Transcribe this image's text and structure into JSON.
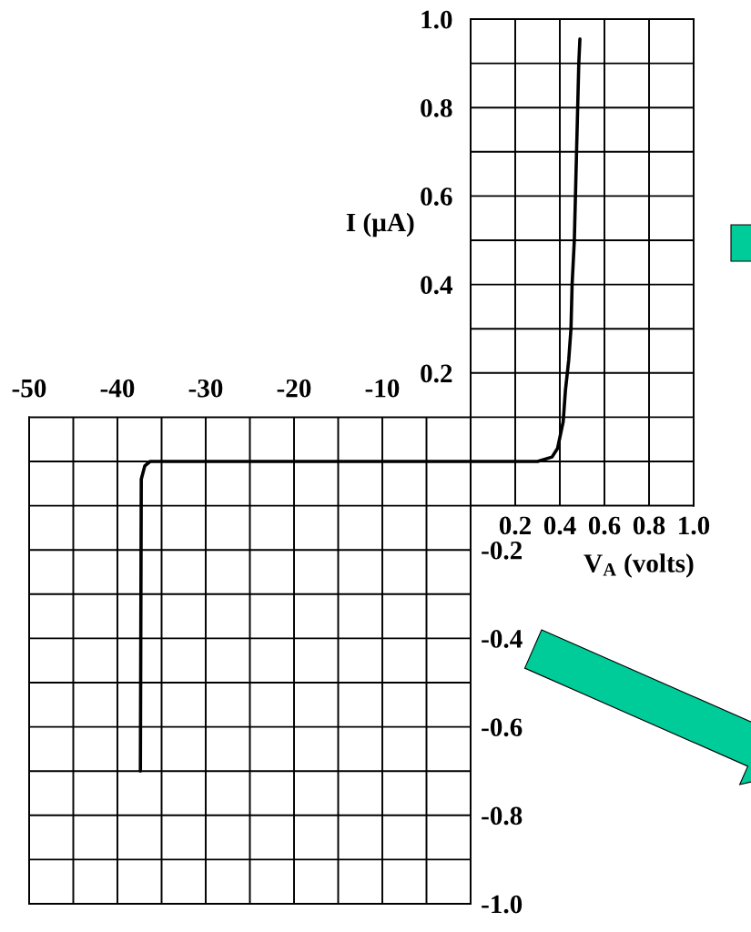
{
  "chart_data": [
    {
      "type": "line",
      "xlabel": "V$_{A}$ (volts)",
      "ylabel": "I (µA)",
      "grid": true,
      "series": [
        {
          "color": "#000000",
          "x": [
            0,
            0.3,
            0.365,
            0.39,
            0.415,
            0.425,
            0.44,
            0.45,
            0.455,
            0.465,
            0.47,
            0.475,
            0.48,
            0.485,
            0.49
          ],
          "values": [
            0,
            0,
            0.01,
            0.03,
            0.09,
            0.16,
            0.23,
            0.3,
            0.4,
            0.5,
            0.6,
            0.7,
            0.8,
            0.9,
            0.955
          ]
        }
      ],
      "xlim": [
        0,
        1
      ],
      "ylim": [
        -1,
        1
      ],
      "xticks": [
        {
          "value": 0,
          "label": null
        },
        0.2,
        0.4,
        0.6,
        0.8,
        {
          "value": 1,
          "label": "1.0"
        }
      ],
      "yticks": [
        {
          "value": -0.1,
          "label": null
        },
        {
          "value": 0,
          "label": null
        },
        {
          "value": 0.1,
          "label": null
        },
        0.2,
        {
          "value": 0.3,
          "label": null
        },
        0.4,
        {
          "value": 0.5,
          "label": null
        },
        0.6,
        {
          "value": 0.7,
          "label": null
        },
        0.8,
        {
          "value": 0.9,
          "label": null
        },
        {
          "value": 1,
          "label": "1.0"
        }
      ]
    },
    {
      "type": "line",
      "grid": true,
      "series": [
        {
          "color": "#000000",
          "x": [
            0,
            -36.3,
            -36.9,
            -37.3,
            -37.4
          ],
          "values": [
            0,
            0,
            -0.01,
            -0.04,
            -0.7
          ]
        }
      ],
      "xlim": [
        -50,
        0
      ],
      "ylim": [
        -1,
        1
      ],
      "xticks": [
        -50,
        {
          "value": -45,
          "label": null
        },
        -40,
        {
          "value": -35,
          "label": null
        },
        -30,
        {
          "value": -25,
          "label": null
        },
        -20,
        {
          "value": -15,
          "label": null
        },
        -10,
        {
          "value": -5,
          "label": null
        },
        {
          "value": 0,
          "label": null
        }
      ],
      "yticks": [
        {
          "value": 0.1,
          "label": null
        },
        {
          "value": 0,
          "label": null
        },
        {
          "value": -0.1,
          "label": null
        },
        -0.2,
        {
          "value": -0.3,
          "label": null
        },
        -0.4,
        {
          "value": -0.5,
          "label": null
        },
        -0.6,
        {
          "value": -0.7,
          "label": null
        },
        -0.8,
        {
          "value": -0.9,
          "label": null
        },
        {
          "value": -1,
          "label": "-1.0"
        }
      ]
    }
  ]
}
